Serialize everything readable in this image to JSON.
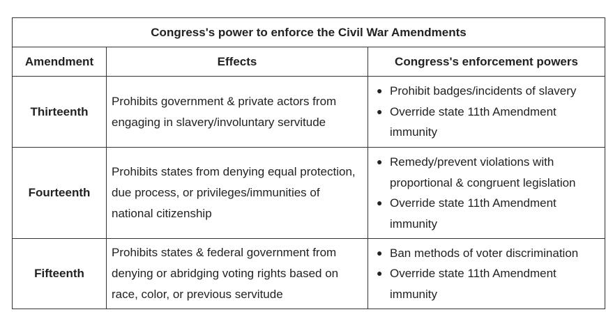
{
  "table": {
    "title": "Congress's power to enforce the Civil War Amendments",
    "headers": {
      "amendment": "Amendment",
      "effects": "Effects",
      "powers": "Congress's enforcement powers"
    },
    "rows": [
      {
        "amendment": "Thirteenth",
        "effect": "Prohibits government & private actors from engaging in slavery/involuntary servitude",
        "powers": [
          "Prohibit badges/incidents of slavery",
          "Override state 11th Amendment immunity"
        ]
      },
      {
        "amendment": "Fourteenth",
        "effect": "Prohibits states from denying equal protection, due process, or privileges/immunities of national citizenship",
        "powers": [
          "Remedy/prevent violations with proportional & congruent legislation",
          "Override state 11th Amendment immunity"
        ]
      },
      {
        "amendment": "Fifteenth",
        "effect": "Prohibits states & federal government from denying or abridging voting rights based on race, color, or previous servitude",
        "powers": [
          "Ban methods of voter discrimination",
          "Override state 11th Amendment immunity"
        ]
      }
    ]
  }
}
